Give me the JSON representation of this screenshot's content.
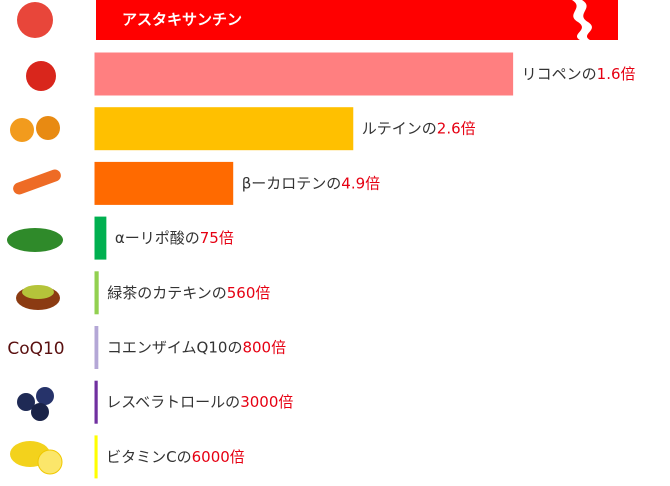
{
  "chart_data": {
    "type": "bar",
    "reference": "アスタキサンチン",
    "reference_color": "#ff0000",
    "categories": [
      "リコペン",
      "ルテイン",
      "βーカロテン",
      "αーリポ酸",
      "緑茶のカテキン",
      "コエンザイムQ10",
      "レスベラトロール",
      "ビタミンC"
    ],
    "connector": "の",
    "unit": "倍",
    "values": [
      1.6,
      2.6,
      4.9,
      75,
      560,
      800,
      3000,
      6000
    ],
    "colors": [
      "#ff7f80",
      "#ffc000",
      "#ff6a00",
      "#00b050",
      "#92d050",
      "#b4a7d6",
      "#7030a0",
      "#ffff00"
    ],
    "scale": "reciprocal",
    "xlim": [
      0,
      1
    ],
    "icon_text": "CoQ10"
  }
}
